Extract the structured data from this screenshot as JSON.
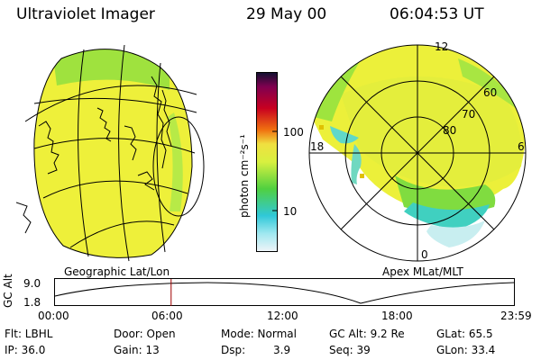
{
  "header": {
    "title": "Ultraviolet Imager",
    "date": "29 May 00",
    "time": "06:04:53 UT"
  },
  "colorbar": {
    "unit_label": "photon cm⁻²s⁻¹",
    "tick_100": "100",
    "tick_10": "10"
  },
  "polar": {
    "mlt_top": "12",
    "mlt_left": "18",
    "mlt_right": "6",
    "mlt_bottom": "0",
    "lat_60": "60",
    "lat_70": "70",
    "lat_80": "80"
  },
  "captions": {
    "left": "Geographic Lat/Lon",
    "right": "Apex MLat/MLT"
  },
  "altitude_plot": {
    "ylabel": "GC Alt",
    "y_top": "9.0",
    "y_bottom": "1.8",
    "x_ticks": [
      "00:00",
      "06:00",
      "12:00",
      "18:00",
      "23:59"
    ],
    "current_time_fraction": 0.253
  },
  "status": {
    "filter": "Flt: LBHL",
    "door": "Door: Open",
    "mode": "Mode: Normal",
    "gc_alt": "GC Alt: 9.2 Re",
    "glat": "GLat: 65.5",
    "ip": "IP: 36.0",
    "gain": "Gain: 13",
    "dsp_label": "Dsp:",
    "dsp_value": "3.9",
    "seq": "Seq: 39",
    "glon": "GLon: 33.4"
  },
  "colors": {
    "field_yellow": "#f0f23a",
    "field_green": "#9de43c",
    "field_cyan": "#3fd6d6",
    "marker": "#e0c000",
    "time_marker": "#a00000"
  }
}
